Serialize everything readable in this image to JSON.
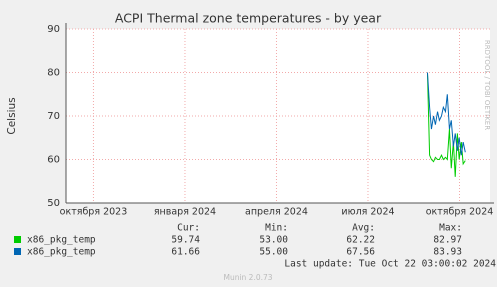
{
  "chart_data": {
    "type": "line",
    "title": "ACPI Thermal zone temperatures - by year",
    "ylabel": "Celsius",
    "x": [
      10.95,
      11.02,
      11.08,
      11.15,
      11.21,
      11.28,
      11.34,
      11.41,
      11.47,
      11.54,
      11.6,
      11.67,
      11.73,
      11.8,
      11.86,
      11.93,
      11.99,
      12.06,
      12.12,
      12.19
    ],
    "xlim": [
      -0.9,
      13
    ],
    "xticks": [
      {
        "value": 0,
        "label": "октября 2023"
      },
      {
        "value": 3,
        "label": "января 2024"
      },
      {
        "value": 6,
        "label": "апреля 2024"
      },
      {
        "value": 9,
        "label": "июля 2024"
      },
      {
        "value": 12,
        "label": "октября 2024"
      }
    ],
    "ylim": [
      50,
      90
    ],
    "yticks": [
      50,
      60,
      70,
      80,
      90
    ],
    "grid": true,
    "legend_headers": [
      "Cur:",
      "Min:",
      "Avg:",
      "Max:"
    ],
    "series": [
      {
        "name": "x86_pkg_temp",
        "color": "#00cc00",
        "values": [
          80,
          61,
          60,
          59.5,
          60.5,
          60,
          60,
          61,
          60,
          60.5,
          60,
          67,
          58,
          64,
          56,
          66,
          60,
          64,
          59,
          59.74
        ],
        "stats": [
          "59.74",
          "53.00",
          "62.22",
          "82.97"
        ]
      },
      {
        "name": "x86_pkg_temp",
        "color": "#0066b3",
        "values": [
          80,
          72,
          67,
          70,
          68,
          71,
          69,
          70,
          72,
          71,
          75,
          67,
          69,
          63,
          66,
          62,
          65,
          61,
          64,
          61.66
        ],
        "stats": [
          "61.66",
          "55.00",
          "67.56",
          "83.93"
        ]
      }
    ],
    "last_update": "Last update: Tue Oct 22 03:00:02 2024",
    "footer": "Munin 2.0.73",
    "watermark": "RRDTOOL / TOBI OETIKER"
  }
}
